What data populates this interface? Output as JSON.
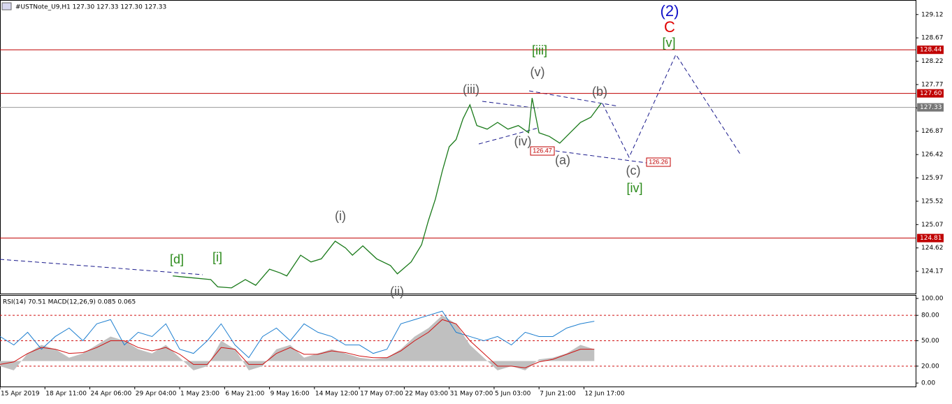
{
  "header": {
    "symbol_line": "#USTNote_U9,H1  127.30 127.33 127.30 127.33"
  },
  "chart_data": [
    {
      "type": "line",
      "x": [
        50,
        61,
        63,
        67,
        71,
        74,
        78,
        81,
        83,
        87,
        90,
        93,
        97,
        100,
        102,
        105,
        109,
        113,
        115,
        119,
        122,
        124,
        126,
        128,
        130,
        132,
        134,
        136,
        138,
        141,
        144,
        147,
        150,
        153,
        154,
        156,
        159,
        162,
        165,
        168,
        171,
        174
      ],
      "values": [
        124.08,
        124.01,
        123.87,
        123.85,
        124.01,
        123.9,
        124.21,
        124.14,
        124.08,
        124.48,
        124.35,
        124.41,
        124.75,
        124.62,
        124.48,
        124.66,
        124.41,
        124.28,
        124.12,
        124.35,
        124.68,
        125.15,
        125.56,
        126.1,
        126.57,
        126.71,
        127.11,
        127.38,
        126.98,
        126.91,
        127.04,
        126.91,
        126.98,
        126.84,
        127.51,
        126.84,
        126.77,
        126.64,
        126.84,
        127.04,
        127.14,
        127.41
      ],
      "color": "#1a7a1a",
      "xlim": [
        0,
        265
      ],
      "xticks": [
        {
          "value": 0,
          "label": "15 Apr 2019"
        },
        {
          "value": 13,
          "label": "18 Apr 11:00"
        },
        {
          "value": 26,
          "label": "24 Apr 06:00"
        },
        {
          "value": 39,
          "label": "29 Apr 04:00"
        },
        {
          "value": 52,
          "label": "1 May 23:00"
        },
        {
          "value": 65,
          "label": "6 May 21:00"
        },
        {
          "value": 78,
          "label": "9 May 16:00"
        },
        {
          "value": 91,
          "label": "14 May 12:00"
        },
        {
          "value": 104,
          "label": "17 May 07:00"
        },
        {
          "value": 117,
          "label": "22 May 03:00"
        },
        {
          "value": 130,
          "label": "31 May 07:00"
        },
        {
          "value": 143,
          "label": "5 Jun 03:00"
        },
        {
          "value": 156,
          "label": "7 Jun 21:00"
        },
        {
          "value": 169,
          "label": "12 Jun 17:00"
        }
      ],
      "ylim": [
        123.74,
        129.4
      ],
      "yticks": [
        129.12,
        128.67,
        128.22,
        127.77,
        127.32,
        126.87,
        126.42,
        125.97,
        125.52,
        125.07,
        124.62,
        124.17
      ],
      "hlines": [
        128.44,
        {
          "value": 127.6,
          "label": "127.60"
        },
        124.81
      ],
      "hline_color": "#c00000",
      "last_price": 127.33,
      "annotations": [
        "(2)",
        "C",
        "[v]",
        "[iii]",
        "(v)",
        "(iii)",
        "(b)",
        "(iv)",
        "(a)",
        "(c)",
        "[iv]",
        "(i)",
        "[d]",
        "[i]",
        "(ii)",
        "126.47",
        "126.26"
      ]
    },
    {
      "type": "line",
      "title": "RSI(14) 70.51 MACD(12,26,9) 0.085 0.065",
      "x": [
        0,
        4,
        8,
        12,
        16,
        20,
        24,
        28,
        32,
        36,
        40,
        44,
        48,
        52,
        56,
        60,
        64,
        68,
        72,
        76,
        80,
        84,
        88,
        92,
        96,
        100,
        104,
        108,
        112,
        116,
        120,
        124,
        128,
        132,
        136,
        140,
        144,
        148,
        152,
        156,
        160,
        164,
        168,
        172
      ],
      "series": [
        {
          "color": "#1e7fd0",
          "values": [
            55,
            45,
            60,
            40,
            55,
            65,
            50,
            70,
            75,
            45,
            60,
            55,
            70,
            40,
            35,
            50,
            70,
            45,
            30,
            55,
            65,
            50,
            70,
            60,
            55,
            45,
            45,
            35,
            40,
            70,
            75,
            80,
            85,
            60,
            55,
            50,
            55,
            45,
            60,
            55,
            55,
            65,
            70,
            73
          ]
        },
        {
          "color": "#c0c0c0",
          "values": [
            20,
            15,
            35,
            45,
            40,
            30,
            35,
            45,
            55,
            50,
            40,
            35,
            45,
            30,
            15,
            20,
            50,
            40,
            15,
            20,
            40,
            45,
            30,
            35,
            40,
            35,
            30,
            28,
            30,
            40,
            55,
            65,
            80,
            70,
            45,
            30,
            15,
            20,
            15,
            28,
            30,
            35,
            45,
            40
          ]
        },
        {
          "color": "#d01010",
          "values": [
            22,
            25,
            35,
            42,
            40,
            35,
            36,
            42,
            50,
            50,
            42,
            38,
            42,
            34,
            22,
            22,
            42,
            40,
            22,
            22,
            35,
            42,
            34,
            34,
            38,
            36,
            32,
            30,
            30,
            38,
            50,
            60,
            75,
            70,
            50,
            35,
            20,
            20,
            18,
            25,
            28,
            34,
            40,
            40
          ]
        }
      ],
      "histogram_base": 26,
      "ylim": [
        -4.1,
        104.1
      ],
      "yticks": [
        {
          "value": 100,
          "label": "100.00"
        },
        {
          "value": 80,
          "label": "80.00"
        },
        {
          "value": 50,
          "label": "50.00"
        },
        {
          "value": 20,
          "label": "20.00"
        },
        {
          "value": 0,
          "label": "0.00"
        }
      ],
      "level_color": "#d01010"
    }
  ]
}
